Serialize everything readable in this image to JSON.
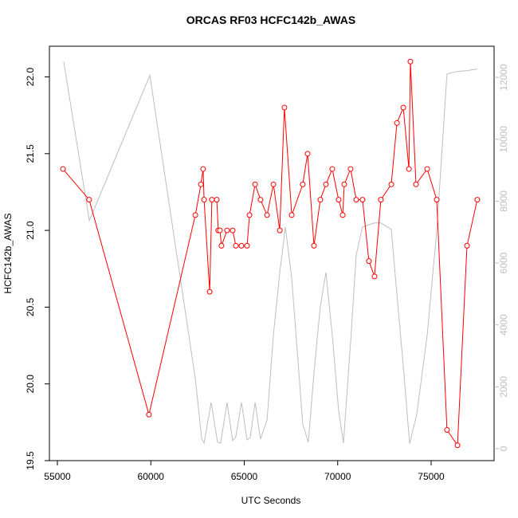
{
  "chart_data": {
    "type": "line",
    "title": "ORCAS RF03 HCFC142b_AWAS",
    "x_label": "UTC Seconds",
    "y_label": "HCFC142b_AWAS",
    "xlim": [
      54574,
      78369
    ],
    "ylim": [
      19.5,
      22.2
    ],
    "y2lim": [
      -386,
      13005
    ],
    "xticks": [
      55000,
      60000,
      65000,
      70000,
      75000
    ],
    "yticks": [
      19.5,
      {
        "value": 20,
        "label": "20.0"
      },
      20.5,
      {
        "value": 21,
        "label": "21.0"
      },
      21.5,
      {
        "value": 22,
        "label": "22.0"
      }
    ],
    "y2ticks": [
      0,
      2000,
      4000,
      6000,
      8000,
      10000,
      12000
    ],
    "series": [
      {
        "color": "#bebebe",
        "axis": "y2",
        "markers": false,
        "x": [
          55340,
          56710,
          59950,
          62380,
          62720,
          62850,
          63230,
          63570,
          63740,
          64080,
          64380,
          64550,
          64850,
          65150,
          65320,
          65580,
          65870,
          66220,
          66560,
          66900,
          67200,
          67540,
          68130,
          68430,
          68730,
          69070,
          69370,
          69710,
          70050,
          70310,
          70690,
          70990,
          71330,
          71970,
          72310,
          72870,
          73170,
          73550,
          73850,
          74230,
          74790,
          75300,
          75850,
          76410,
          76920,
          77470
        ],
        "values": [
          12500,
          7371,
          12062,
          2268,
          335,
          180,
          1495,
          206,
          180,
          1495,
          258,
          387,
          1495,
          284,
          361,
          1495,
          309,
          928,
          3686,
          5670,
          7165,
          5490,
          799,
          206,
          2448,
          4588,
          5696,
          3686,
          1237,
          180,
          3428,
          6263,
          7165,
          7294,
          7294,
          7088,
          4974,
          2397,
          155,
          1108,
          3686,
          7036,
          12113,
          12191,
          12216,
          12268
        ]
      },
      {
        "color": "#ff0000",
        "axis": "y",
        "markers": true,
        "x": [
          55300,
          56700,
          59900,
          62380,
          62680,
          62800,
          62850,
          63150,
          63270,
          63530,
          63610,
          63700,
          63780,
          64080,
          64380,
          64550,
          64850,
          65150,
          65280,
          65580,
          65870,
          66220,
          66560,
          66900,
          67150,
          67540,
          68130,
          68390,
          68730,
          69070,
          69370,
          69710,
          70050,
          70270,
          70350,
          70690,
          70990,
          71330,
          71670,
          71970,
          72310,
          72870,
          73170,
          73510,
          73810,
          73890,
          74190,
          74790,
          75300,
          75850,
          76410,
          76920,
          77470
        ],
        "values": [
          21.4,
          21.2,
          19.8,
          21.1,
          21.3,
          21.4,
          21.2,
          20.6,
          21.2,
          21.2,
          21.0,
          21.0,
          20.9,
          21.0,
          21.0,
          20.9,
          20.9,
          20.9,
          21.1,
          21.3,
          21.2,
          21.1,
          21.3,
          21.0,
          21.8,
          21.1,
          21.3,
          21.5,
          20.9,
          21.2,
          21.3,
          21.4,
          21.2,
          21.1,
          21.3,
          21.4,
          21.2,
          21.2,
          20.8,
          20.7,
          21.2,
          21.3,
          21.7,
          21.8,
          21.4,
          22.1,
          21.3,
          21.4,
          21.2,
          19.7,
          19.6,
          20.9,
          21.2
        ]
      }
    ]
  }
}
